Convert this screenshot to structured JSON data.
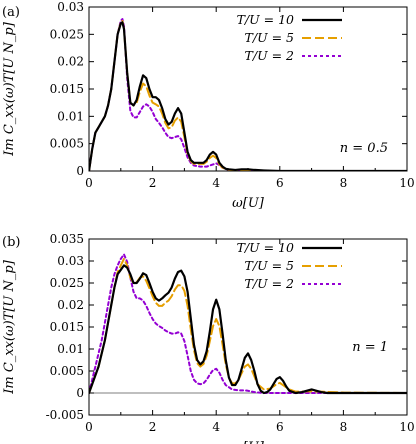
{
  "chart_data": [
    {
      "type": "line",
      "panel_label": "(a)",
      "xlabel": "ω[U]",
      "ylabel": "Im C_xx(ω)T[U N_p]",
      "xlim": [
        0,
        10
      ],
      "ylim": [
        0,
        0.03
      ],
      "xticks": [
        "0",
        "2",
        "4",
        "6",
        "8",
        "10"
      ],
      "yticks": [
        "0",
        "0.005",
        "0.01",
        "0.015",
        "0.02",
        "0.025",
        "0.03"
      ],
      "annotation": "n = 0.5",
      "legend": "top-right",
      "grid": false,
      "series": [
        {
          "name": "T/U = 10",
          "color": "#000000",
          "style": "solid",
          "x": [
            0,
            0.1,
            0.2,
            0.3,
            0.4,
            0.5,
            0.6,
            0.7,
            0.8,
            0.9,
            1.0,
            1.05,
            1.1,
            1.2,
            1.3,
            1.4,
            1.5,
            1.6,
            1.7,
            1.8,
            1.9,
            2.0,
            2.1,
            2.2,
            2.3,
            2.4,
            2.5,
            2.6,
            2.7,
            2.8,
            2.9,
            3.0,
            3.1,
            3.2,
            3.3,
            3.4,
            3.5,
            3.6,
            3.7,
            3.8,
            3.9,
            4.0,
            4.1,
            4.2,
            4.3,
            4.4,
            4.6,
            4.8,
            5.0,
            5.2,
            5.5,
            6.0,
            7.0,
            8.0,
            9.0,
            10.0
          ],
          "y": [
            0,
            0.004,
            0.007,
            0.008,
            0.009,
            0.01,
            0.012,
            0.015,
            0.02,
            0.025,
            0.027,
            0.0272,
            0.026,
            0.018,
            0.0125,
            0.012,
            0.013,
            0.0155,
            0.0175,
            0.017,
            0.015,
            0.0135,
            0.0135,
            0.013,
            0.0115,
            0.0095,
            0.0085,
            0.009,
            0.0105,
            0.0115,
            0.0105,
            0.007,
            0.0035,
            0.002,
            0.0015,
            0.0015,
            0.0015,
            0.0015,
            0.002,
            0.003,
            0.0035,
            0.003,
            0.0015,
            0.0008,
            0.0004,
            0.0003,
            0.0002,
            0.0003,
            0.0003,
            0.0002,
            0.0001,
            0,
            0,
            0,
            0,
            0
          ]
        },
        {
          "name": "T/U = 5",
          "color": "#e69f00",
          "style": "dash",
          "x": [
            0,
            0.1,
            0.2,
            0.3,
            0.4,
            0.5,
            0.6,
            0.7,
            0.8,
            0.9,
            1.0,
            1.05,
            1.1,
            1.2,
            1.3,
            1.4,
            1.5,
            1.6,
            1.7,
            1.8,
            1.9,
            2.0,
            2.1,
            2.2,
            2.3,
            2.4,
            2.5,
            2.6,
            2.7,
            2.8,
            2.9,
            3.0,
            3.1,
            3.2,
            3.3,
            3.4,
            3.5,
            3.6,
            3.7,
            3.8,
            3.9,
            4.0,
            4.1,
            4.2,
            4.4,
            4.6,
            5.0,
            6.0,
            8.0,
            10.0
          ],
          "y": [
            0,
            0.004,
            0.007,
            0.008,
            0.009,
            0.01,
            0.012,
            0.015,
            0.02,
            0.025,
            0.0272,
            0.0275,
            0.026,
            0.018,
            0.0125,
            0.012,
            0.0125,
            0.0145,
            0.016,
            0.0155,
            0.0138,
            0.0125,
            0.0122,
            0.0118,
            0.0105,
            0.0088,
            0.0078,
            0.008,
            0.0092,
            0.0098,
            0.009,
            0.0062,
            0.0032,
            0.0018,
            0.0013,
            0.0013,
            0.0013,
            0.0013,
            0.0017,
            0.0024,
            0.0028,
            0.0024,
            0.0012,
            0.0006,
            0.0002,
            0.0001,
            0,
            0,
            0,
            0
          ]
        },
        {
          "name": "T/U = 2",
          "color": "#9400d3",
          "style": "dot",
          "x": [
            0,
            0.1,
            0.2,
            0.3,
            0.4,
            0.5,
            0.6,
            0.7,
            0.8,
            0.9,
            1.0,
            1.05,
            1.1,
            1.2,
            1.3,
            1.4,
            1.5,
            1.6,
            1.7,
            1.8,
            1.9,
            2.0,
            2.1,
            2.2,
            2.3,
            2.4,
            2.5,
            2.6,
            2.7,
            2.8,
            2.9,
            3.0,
            3.1,
            3.2,
            3.3,
            3.5,
            3.7,
            3.9,
            4.0,
            4.1,
            4.2,
            4.4,
            5.0,
            6.0,
            8.0,
            10.0
          ],
          "y": [
            0,
            0.004,
            0.007,
            0.008,
            0.009,
            0.01,
            0.012,
            0.015,
            0.02,
            0.025,
            0.0275,
            0.0278,
            0.0265,
            0.017,
            0.011,
            0.0098,
            0.0098,
            0.0108,
            0.0118,
            0.0122,
            0.0118,
            0.0108,
            0.0095,
            0.0088,
            0.008,
            0.007,
            0.0062,
            0.006,
            0.0062,
            0.0064,
            0.0058,
            0.0042,
            0.0025,
            0.0015,
            0.001,
            0.0008,
            0.0008,
            0.0012,
            0.0014,
            0.0011,
            0.0006,
            0.0002,
            0,
            0,
            0,
            0
          ]
        }
      ]
    },
    {
      "type": "line",
      "panel_label": "(b)",
      "xlabel": "ω[U]",
      "ylabel": "Im C_xx(ω)T[U N_p]",
      "xlim": [
        0,
        10
      ],
      "ylim": [
        -0.005,
        0.035
      ],
      "xticks": [
        "0",
        "2",
        "4",
        "6",
        "8",
        "10"
      ],
      "yticks": [
        "-0.005",
        "0",
        "0.005",
        "0.01",
        "0.015",
        "0.02",
        "0.025",
        "0.03",
        "0.035"
      ],
      "annotation": "n = 1",
      "legend": "top-right",
      "grid": false,
      "series": [
        {
          "name": "T/U = 10",
          "color": "#000000",
          "style": "solid",
          "x": [
            0,
            0.1,
            0.2,
            0.3,
            0.4,
            0.5,
            0.6,
            0.7,
            0.8,
            0.9,
            1.0,
            1.1,
            1.2,
            1.3,
            1.4,
            1.5,
            1.6,
            1.7,
            1.8,
            1.9,
            2.0,
            2.1,
            2.2,
            2.3,
            2.4,
            2.5,
            2.6,
            2.7,
            2.8,
            2.9,
            3.0,
            3.1,
            3.2,
            3.3,
            3.4,
            3.5,
            3.6,
            3.7,
            3.8,
            3.9,
            4.0,
            4.1,
            4.2,
            4.3,
            4.4,
            4.5,
            4.6,
            4.7,
            4.8,
            4.9,
            5.0,
            5.1,
            5.2,
            5.3,
            5.4,
            5.5,
            5.6,
            5.7,
            5.8,
            5.9,
            6.0,
            6.1,
            6.2,
            6.3,
            6.5,
            6.7,
            6.9,
            7.0,
            7.1,
            7.3,
            7.5,
            8.0,
            9.0,
            10.0
          ],
          "y": [
            0,
            0.002,
            0.004,
            0.006,
            0.009,
            0.012,
            0.016,
            0.02,
            0.024,
            0.027,
            0.028,
            0.029,
            0.0285,
            0.027,
            0.025,
            0.025,
            0.026,
            0.0272,
            0.0268,
            0.025,
            0.023,
            0.0215,
            0.021,
            0.0215,
            0.0222,
            0.0228,
            0.024,
            0.026,
            0.0275,
            0.0278,
            0.0265,
            0.023,
            0.017,
            0.011,
            0.0075,
            0.0065,
            0.0072,
            0.0095,
            0.014,
            0.019,
            0.0212,
            0.019,
            0.0135,
            0.0075,
            0.0035,
            0.0018,
            0.0018,
            0.003,
            0.0055,
            0.008,
            0.009,
            0.0075,
            0.005,
            0.002,
            0.0005,
            0,
            0.0002,
            0.0008,
            0.002,
            0.0032,
            0.0036,
            0.0028,
            0.0015,
            0.0005,
            0,
            0.0002,
            0.0006,
            0.0008,
            0.0006,
            0.0002,
            0,
            0,
            0,
            0
          ]
        },
        {
          "name": "T/U = 5",
          "color": "#e69f00",
          "style": "dash",
          "x": [
            0,
            0.1,
            0.2,
            0.3,
            0.4,
            0.5,
            0.6,
            0.7,
            0.8,
            0.9,
            1.0,
            1.1,
            1.2,
            1.3,
            1.4,
            1.5,
            1.6,
            1.7,
            1.8,
            1.9,
            2.0,
            2.1,
            2.2,
            2.3,
            2.4,
            2.5,
            2.6,
            2.7,
            2.8,
            2.9,
            3.0,
            3.1,
            3.2,
            3.3,
            3.4,
            3.5,
            3.6,
            3.7,
            3.8,
            3.9,
            4.0,
            4.1,
            4.2,
            4.3,
            4.4,
            4.5,
            4.6,
            4.7,
            4.8,
            4.9,
            5.0,
            5.1,
            5.2,
            5.3,
            5.5,
            5.7,
            5.9,
            6.0,
            6.1,
            6.3,
            6.5,
            7.0,
            8.0,
            10.0
          ],
          "y": [
            0,
            0.002,
            0.004,
            0.006,
            0.009,
            0.012,
            0.016,
            0.02,
            0.024,
            0.0275,
            0.029,
            0.0305,
            0.029,
            0.0262,
            0.025,
            0.0252,
            0.0262,
            0.0265,
            0.0255,
            0.0238,
            0.022,
            0.0205,
            0.0198,
            0.0198,
            0.0205,
            0.021,
            0.022,
            0.0235,
            0.0245,
            0.0245,
            0.0232,
            0.0198,
            0.0145,
            0.0098,
            0.0068,
            0.006,
            0.0066,
            0.0085,
            0.0118,
            0.0152,
            0.0168,
            0.0152,
            0.011,
            0.0065,
            0.0035,
            0.0022,
            0.0022,
            0.003,
            0.0045,
            0.006,
            0.0065,
            0.0055,
            0.0038,
            0.002,
            0.0008,
            0.001,
            0.002,
            0.0023,
            0.0018,
            0.0008,
            0.0003,
            0.0004,
            0.0001,
            0
          ]
        },
        {
          "name": "T/U = 2",
          "color": "#9400d3",
          "style": "dot",
          "x": [
            0,
            0.1,
            0.2,
            0.3,
            0.4,
            0.5,
            0.6,
            0.7,
            0.8,
            0.9,
            1.0,
            1.1,
            1.2,
            1.3,
            1.4,
            1.5,
            1.6,
            1.7,
            1.8,
            1.9,
            2.0,
            2.1,
            2.2,
            2.3,
            2.4,
            2.5,
            2.6,
            2.7,
            2.8,
            2.9,
            3.0,
            3.1,
            3.2,
            3.3,
            3.4,
            3.5,
            3.6,
            3.7,
            3.8,
            3.9,
            4.0,
            4.1,
            4.2,
            4.3,
            4.5,
            4.7,
            4.9,
            5.0,
            5.2,
            5.5,
            6.0,
            7.0,
            8.0,
            10.0
          ],
          "y": [
            0,
            0.003,
            0.006,
            0.009,
            0.012,
            0.016,
            0.02,
            0.024,
            0.027,
            0.029,
            0.0305,
            0.0315,
            0.0298,
            0.0262,
            0.023,
            0.0215,
            0.0215,
            0.021,
            0.0198,
            0.0182,
            0.0168,
            0.0158,
            0.0152,
            0.0148,
            0.0142,
            0.0138,
            0.0135,
            0.0135,
            0.0138,
            0.0135,
            0.0118,
            0.0085,
            0.005,
            0.003,
            0.0022,
            0.002,
            0.0022,
            0.003,
            0.0042,
            0.0052,
            0.0055,
            0.0046,
            0.003,
            0.0018,
            0.0008,
            0.0006,
            0.0006,
            0.0005,
            0.0002,
            0,
            0,
            0,
            0,
            0
          ]
        }
      ]
    }
  ]
}
